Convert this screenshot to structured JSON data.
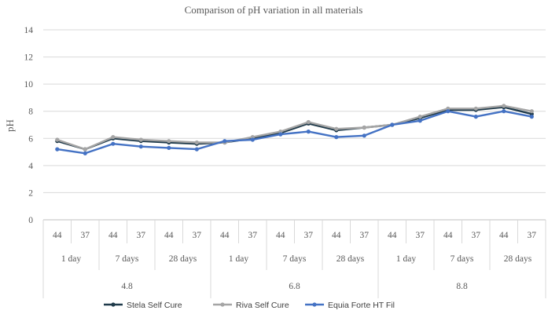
{
  "chart_data": {
    "type": "line",
    "title": "Comparison of pH variation in all materials",
    "ylabel": "pH",
    "xlabel": "",
    "ylim": [
      0,
      14
    ],
    "yticks": [
      0,
      2,
      4,
      6,
      8,
      10,
      12,
      14
    ],
    "grid": true,
    "legend_position": "bottom",
    "x_levels": {
      "temperature": [
        "44",
        "37",
        "44",
        "37",
        "44",
        "37",
        "44",
        "37",
        "44",
        "37",
        "44",
        "37",
        "44",
        "37",
        "44",
        "37",
        "44",
        "37"
      ],
      "time": [
        "1 day",
        "7 days",
        "28 days",
        "1 day",
        "7 days",
        "28 days",
        "1 day",
        "7 days",
        "28 days"
      ],
      "initial_ph": [
        "4.8",
        "6.8",
        "8.8"
      ]
    },
    "series": [
      {
        "name": "Stela Self Cure",
        "color": "#1f3a4a",
        "values": [
          5.8,
          5.2,
          6.0,
          5.8,
          5.7,
          5.6,
          5.7,
          6.0,
          6.4,
          7.1,
          6.6,
          6.8,
          7.0,
          7.5,
          8.1,
          8.1,
          8.3,
          7.8
        ]
      },
      {
        "name": "Riva Self Cure",
        "color": "#a5a5a5",
        "values": [
          5.9,
          5.2,
          6.1,
          5.9,
          5.8,
          5.7,
          5.7,
          6.1,
          6.5,
          7.2,
          6.7,
          6.8,
          7.0,
          7.6,
          8.2,
          8.2,
          8.4,
          8.0
        ]
      },
      {
        "name": "Equia Forte HT Fil",
        "color": "#4472c4",
        "values": [
          5.2,
          4.9,
          5.6,
          5.4,
          5.3,
          5.2,
          5.8,
          5.9,
          6.3,
          6.5,
          6.1,
          6.2,
          7.0,
          7.3,
          8.0,
          7.6,
          8.0,
          7.6
        ]
      }
    ]
  }
}
